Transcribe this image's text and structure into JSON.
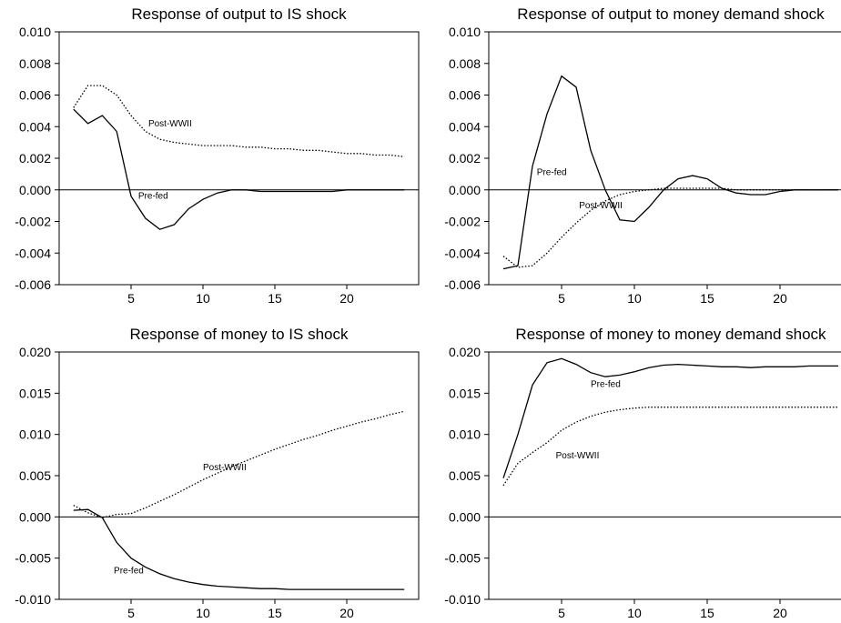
{
  "chart_data": [
    {
      "type": "line",
      "title": "Response of output to IS shock",
      "xlabel": "",
      "ylabel": "",
      "xlim": [
        0,
        25
      ],
      "ylim": [
        -0.006,
        0.01
      ],
      "x_ticks": [
        5,
        10,
        15,
        20
      ],
      "y_ticks": [
        -0.006,
        -0.004,
        -0.002,
        0.0,
        0.002,
        0.004,
        0.006,
        0.008,
        0.01
      ],
      "y_tick_labels": [
        "-0.006",
        "-0.004",
        "-0.002",
        "0.000",
        "0.002",
        "0.004",
        "0.006",
        "0.008",
        "0.010"
      ],
      "zero_line": true,
      "x": [
        1,
        2,
        3,
        4,
        5,
        6,
        7,
        8,
        9,
        10,
        11,
        12,
        13,
        14,
        15,
        16,
        17,
        18,
        19,
        20,
        21,
        22,
        23,
        24
      ],
      "series": [
        {
          "name": "Pre-fed",
          "style": "solid",
          "values": [
            0.0051,
            0.0042,
            0.0047,
            0.0037,
            -0.0004,
            -0.0018,
            -0.0025,
            -0.0022,
            -0.0012,
            -0.0006,
            -0.0002,
            0.0,
            0.0,
            -0.0001,
            -0.0001,
            -0.0001,
            -0.0001,
            -0.0001,
            -0.0001,
            0.0,
            0.0,
            0.0,
            0.0,
            0.0
          ]
        },
        {
          "name": "Post-WWII",
          "style": "dotted",
          "values": [
            0.0052,
            0.0066,
            0.0066,
            0.006,
            0.0047,
            0.0037,
            0.0032,
            0.003,
            0.0029,
            0.0028,
            0.0028,
            0.0028,
            0.0027,
            0.0027,
            0.0026,
            0.0026,
            0.0025,
            0.0025,
            0.0024,
            0.0023,
            0.0023,
            0.0022,
            0.0022,
            0.0021
          ]
        }
      ],
      "annotations": [
        {
          "text": "Post-WWII",
          "x": 6.2,
          "y": 0.0042
        },
        {
          "text": "Pre-fed",
          "x": 5.5,
          "y": -0.0004
        }
      ]
    },
    {
      "type": "line",
      "title": "Response of output to money demand shock",
      "xlabel": "",
      "ylabel": "",
      "xlim": [
        0,
        25
      ],
      "ylim": [
        -0.006,
        0.01
      ],
      "x_ticks": [
        5,
        10,
        15,
        20
      ],
      "y_ticks": [
        -0.006,
        -0.004,
        -0.002,
        0.0,
        0.002,
        0.004,
        0.006,
        0.008,
        0.01
      ],
      "y_tick_labels": [
        "-0.006",
        "-0.004",
        "-0.002",
        "0.000",
        "0.002",
        "0.004",
        "0.006",
        "0.008",
        "0.010"
      ],
      "zero_line": true,
      "x": [
        1,
        2,
        3,
        4,
        5,
        6,
        7,
        8,
        9,
        10,
        11,
        12,
        13,
        14,
        15,
        16,
        17,
        18,
        19,
        20,
        21,
        22,
        23,
        24
      ],
      "series": [
        {
          "name": "Pre-fed",
          "style": "solid",
          "values": [
            -0.005,
            -0.0048,
            0.0015,
            0.0048,
            0.0072,
            0.0065,
            0.0025,
            0.0,
            -0.0019,
            -0.002,
            -0.0011,
            0.0,
            0.0007,
            0.0009,
            0.0007,
            0.0001,
            -0.0002,
            -0.0003,
            -0.0003,
            -0.0001,
            0.0,
            0.0,
            0.0,
            0.0
          ]
        },
        {
          "name": "Post-WWII",
          "style": "dotted",
          "values": [
            -0.0042,
            -0.0049,
            -0.0048,
            -0.004,
            -0.003,
            -0.0021,
            -0.0013,
            -0.0007,
            -0.0003,
            -0.0001,
            0.0,
            0.0001,
            0.0001,
            0.0001,
            0.0001,
            0.0001,
            0.0,
            0.0,
            0.0,
            0.0,
            0.0,
            0.0,
            0.0,
            0.0
          ]
        }
      ],
      "annotations": [
        {
          "text": "Pre-fed",
          "x": 3.3,
          "y": 0.0011
        },
        {
          "text": "Post-WWII",
          "x": 6.2,
          "y": -0.001
        }
      ]
    },
    {
      "type": "line",
      "title": "Response of money to IS shock",
      "xlabel": "",
      "ylabel": "",
      "xlim": [
        0,
        25
      ],
      "ylim": [
        -0.01,
        0.02
      ],
      "x_ticks": [
        5,
        10,
        15,
        20
      ],
      "y_ticks": [
        -0.01,
        -0.005,
        0.0,
        0.005,
        0.01,
        0.015,
        0.02
      ],
      "y_tick_labels": [
        "-0.010",
        "-0.005",
        "0.000",
        "0.005",
        "0.010",
        "0.015",
        "0.020"
      ],
      "zero_line": true,
      "x": [
        1,
        2,
        3,
        4,
        5,
        6,
        7,
        8,
        9,
        10,
        11,
        12,
        13,
        14,
        15,
        16,
        17,
        18,
        19,
        20,
        21,
        22,
        23,
        24
      ],
      "series": [
        {
          "name": "Pre-fed",
          "style": "solid",
          "values": [
            0.0008,
            0.0009,
            -0.0001,
            -0.0031,
            -0.005,
            -0.0061,
            -0.0069,
            -0.0075,
            -0.0079,
            -0.0082,
            -0.0084,
            -0.0085,
            -0.0086,
            -0.0087,
            -0.0087,
            -0.0088,
            -0.0088,
            -0.0088,
            -0.0088,
            -0.0088,
            -0.0088,
            -0.0088,
            -0.0088,
            -0.0088
          ]
        },
        {
          "name": "Post-WWII",
          "style": "dotted",
          "values": [
            0.0014,
            0.0005,
            -0.0001,
            0.0003,
            0.0004,
            0.0011,
            0.0019,
            0.0027,
            0.0036,
            0.0045,
            0.0053,
            0.0061,
            0.0068,
            0.0075,
            0.0082,
            0.0088,
            0.0094,
            0.0099,
            0.0105,
            0.011,
            0.0115,
            0.0119,
            0.0124,
            0.0128
          ]
        }
      ],
      "annotations": [
        {
          "text": "Post-WWII",
          "x": 10.0,
          "y": 0.006
        },
        {
          "text": "Pre-fed",
          "x": 3.8,
          "y": -0.0065
        }
      ]
    },
    {
      "type": "line",
      "title": "Response of money to money demand shock",
      "xlabel": "",
      "ylabel": "",
      "xlim": [
        0,
        25
      ],
      "ylim": [
        -0.01,
        0.02
      ],
      "x_ticks": [
        5,
        10,
        15,
        20
      ],
      "y_ticks": [
        -0.01,
        -0.005,
        0.0,
        0.005,
        0.01,
        0.015,
        0.02
      ],
      "y_tick_labels": [
        "-0.010",
        "-0.005",
        "0.000",
        "0.005",
        "0.010",
        "0.015",
        "0.020"
      ],
      "zero_line": true,
      "x": [
        1,
        2,
        3,
        4,
        5,
        6,
        7,
        8,
        9,
        10,
        11,
        12,
        13,
        14,
        15,
        16,
        17,
        18,
        19,
        20,
        21,
        22,
        23,
        24
      ],
      "series": [
        {
          "name": "Pre-fed",
          "style": "solid",
          "values": [
            0.0047,
            0.01,
            0.016,
            0.0187,
            0.0192,
            0.0185,
            0.0175,
            0.017,
            0.0172,
            0.0176,
            0.0181,
            0.0184,
            0.0185,
            0.0184,
            0.0183,
            0.0182,
            0.0182,
            0.0181,
            0.0182,
            0.0182,
            0.0182,
            0.0183,
            0.0183,
            0.0183
          ]
        },
        {
          "name": "Post-WWII",
          "style": "dotted",
          "values": [
            0.0038,
            0.0065,
            0.0078,
            0.009,
            0.0105,
            0.0115,
            0.0122,
            0.0127,
            0.013,
            0.0132,
            0.0133,
            0.0133,
            0.0133,
            0.0133,
            0.0133,
            0.0133,
            0.0133,
            0.0133,
            0.0133,
            0.0133,
            0.0133,
            0.0133,
            0.0133,
            0.0133
          ]
        }
      ],
      "annotations": [
        {
          "text": "Pre-fed",
          "x": 7.0,
          "y": 0.0161
        },
        {
          "text": "Post-WWII",
          "x": 4.6,
          "y": 0.0074
        }
      ]
    }
  ]
}
